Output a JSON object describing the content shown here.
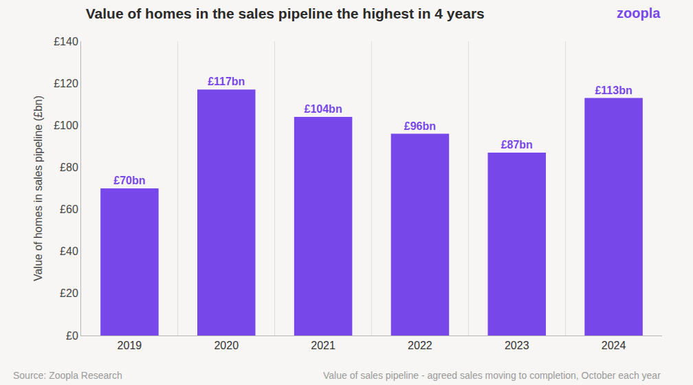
{
  "chart_data": {
    "type": "bar",
    "title": "Value of homes in the sales pipeline the highest in 4 years",
    "logo": "zoopla",
    "y_label": "Value of homes in sales pipeline (£bn)",
    "source": "Source: Zoopla Research",
    "footnote": "Value of sales pipeline - agreed sales moving to completion, October each year",
    "categories": [
      "2019",
      "2020",
      "2021",
      "2022",
      "2023",
      "2024"
    ],
    "values": [
      70,
      117,
      104,
      96,
      87,
      113
    ],
    "value_labels": [
      "£70bn",
      "£117bn",
      "£104bn",
      "£96bn",
      "£87bn",
      "£113bn"
    ],
    "data_labels": true,
    "color": "#7847ea",
    "ylim": [
      0,
      140
    ],
    "yticks": [
      {
        "value": 0,
        "label": "£0"
      },
      {
        "value": 20,
        "label": "£20"
      },
      {
        "value": 40,
        "label": "£40"
      },
      {
        "value": 60,
        "label": "£60"
      },
      {
        "value": 80,
        "label": "£80"
      },
      {
        "value": 100,
        "label": "£100"
      },
      {
        "value": 120,
        "label": "£120"
      },
      {
        "value": 140,
        "label": "£140"
      }
    ],
    "grid": true
  }
}
